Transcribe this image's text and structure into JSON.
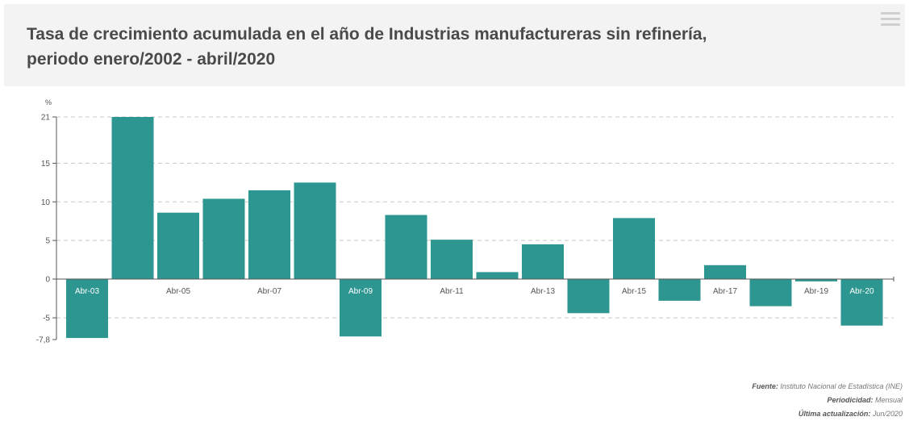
{
  "header": {
    "title_line1": "Tasa de crecimiento acumulada en el año de Industrias manufactureras sin refinería,",
    "title_line2": "periodo enero/2002 - abril/2020"
  },
  "footer": {
    "source_label": "Fuente:",
    "source_value": "Instituto Nacional de Estadística (INE)",
    "period_label": "Periodicidad:",
    "period_value": "Mensual",
    "update_label": "Última actualización:",
    "update_value": "Jun/2020"
  },
  "colors": {
    "bar": "#2e9690",
    "grid": "#c8c8c8",
    "axis": "#555555",
    "label_inside": "#ffffff"
  },
  "chart_data": {
    "type": "bar",
    "ylabel": "%",
    "ylim": [
      -7.8,
      21
    ],
    "yticks": [
      21,
      15,
      10,
      5,
      0,
      -5,
      -7.8
    ],
    "grid": true,
    "categories": [
      "Abr-03",
      "Abr-04",
      "Abr-05",
      "Abr-06",
      "Abr-07",
      "Abr-08",
      "Abr-09",
      "Abr-10",
      "Abr-11",
      "Abr-12",
      "Abr-13",
      "Abr-14",
      "Abr-15",
      "Abr-16",
      "Abr-17",
      "Abr-18",
      "Abr-19",
      "Abr-20"
    ],
    "tick_labels": [
      "Abr-03",
      "",
      "Abr-05",
      "",
      "Abr-07",
      "",
      "Abr-09",
      "",
      "Abr-11",
      "",
      "Abr-13",
      "",
      "Abr-15",
      "",
      "Abr-17",
      "",
      "Abr-19",
      "Abr-20"
    ],
    "values": [
      -7.6,
      21.0,
      8.6,
      10.4,
      11.5,
      12.5,
      -7.4,
      8.3,
      5.1,
      0.9,
      4.5,
      -4.4,
      7.9,
      -2.8,
      1.8,
      -3.5,
      -0.3,
      -6.0
    ]
  }
}
